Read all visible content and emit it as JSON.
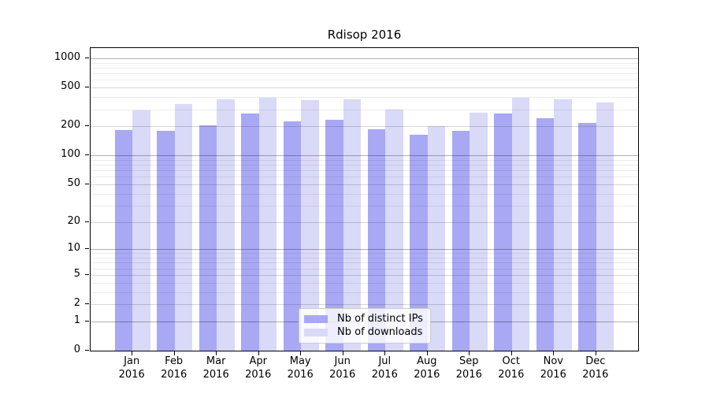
{
  "chart_data": {
    "type": "bar",
    "title": "Rdisop 2016",
    "categories": [
      "Jan",
      "Feb",
      "Mar",
      "Apr",
      "May",
      "Jun",
      "Jul",
      "Aug",
      "Sep",
      "Oct",
      "Nov",
      "Dec"
    ],
    "year_label": "2016",
    "series": [
      {
        "name": "Nb of distinct IPs",
        "color": "#a8a8f5",
        "values": [
          184,
          181,
          205,
          272,
          224,
          233,
          186,
          162,
          178,
          270,
          240,
          218
        ]
      },
      {
        "name": "Nb of downloads",
        "color": "#d9d9f8",
        "values": [
          293,
          337,
          376,
          392,
          373,
          377,
          295,
          201,
          274,
          395,
          378,
          352
        ]
      }
    ],
    "y_axis": {
      "scale": "log1p",
      "tick_values": [
        0,
        1,
        2,
        5,
        10,
        20,
        50,
        100,
        200,
        500,
        1000
      ],
      "top_value": 1272
    },
    "xlabel": "",
    "ylabel": "",
    "legend": {
      "position": "bottom-center"
    },
    "colors": {
      "grid_major": "rgba(0,0,0,0.30)",
      "grid_mid": "rgba(0,0,0,0.16)",
      "grid_minor": "rgba(0,0,0,0.08)",
      "axis": "#000000",
      "background": "#ffffff"
    }
  }
}
